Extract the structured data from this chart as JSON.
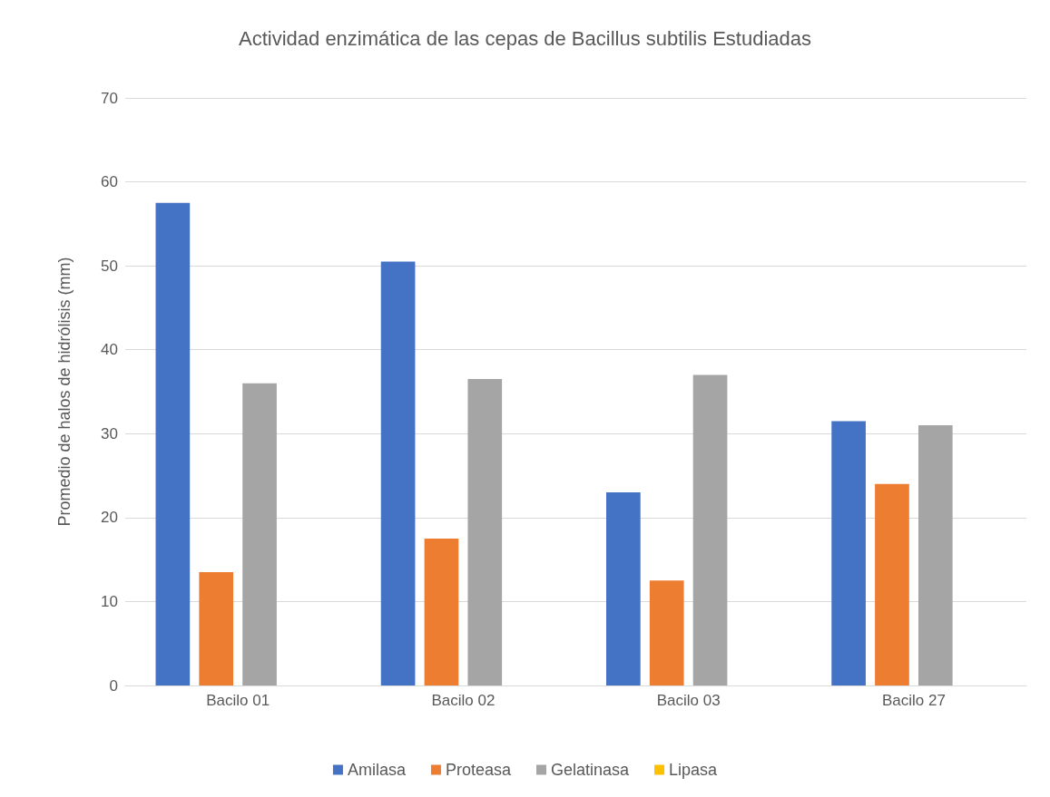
{
  "chart_data": {
    "type": "bar",
    "title": "Actividad enzimática de las cepas de Bacillus subtilis Estudiadas",
    "ylabel": "Promedio de halos de hidrólisis (mm)",
    "categories": [
      "Bacilo 01",
      "Bacilo 02",
      "Bacilo 03",
      "Bacilo 27"
    ],
    "series": [
      {
        "name": "Amilasa",
        "color": "#4472c4",
        "values": [
          57.5,
          50.5,
          23,
          31.5
        ]
      },
      {
        "name": "Proteasa",
        "color": "#ed7d31",
        "values": [
          13.5,
          17.5,
          12.5,
          24
        ]
      },
      {
        "name": "Gelatinasa",
        "color": "#a5a5a5",
        "values": [
          36,
          36.5,
          37,
          31
        ]
      },
      {
        "name": "Lipasa",
        "color": "#ffc000",
        "values": [
          0,
          0,
          0,
          0
        ]
      }
    ],
    "ylim": [
      0,
      70
    ],
    "yticks": [
      0,
      10,
      20,
      30,
      40,
      50,
      60,
      70
    ],
    "grid": "y",
    "legend": "bottom"
  }
}
